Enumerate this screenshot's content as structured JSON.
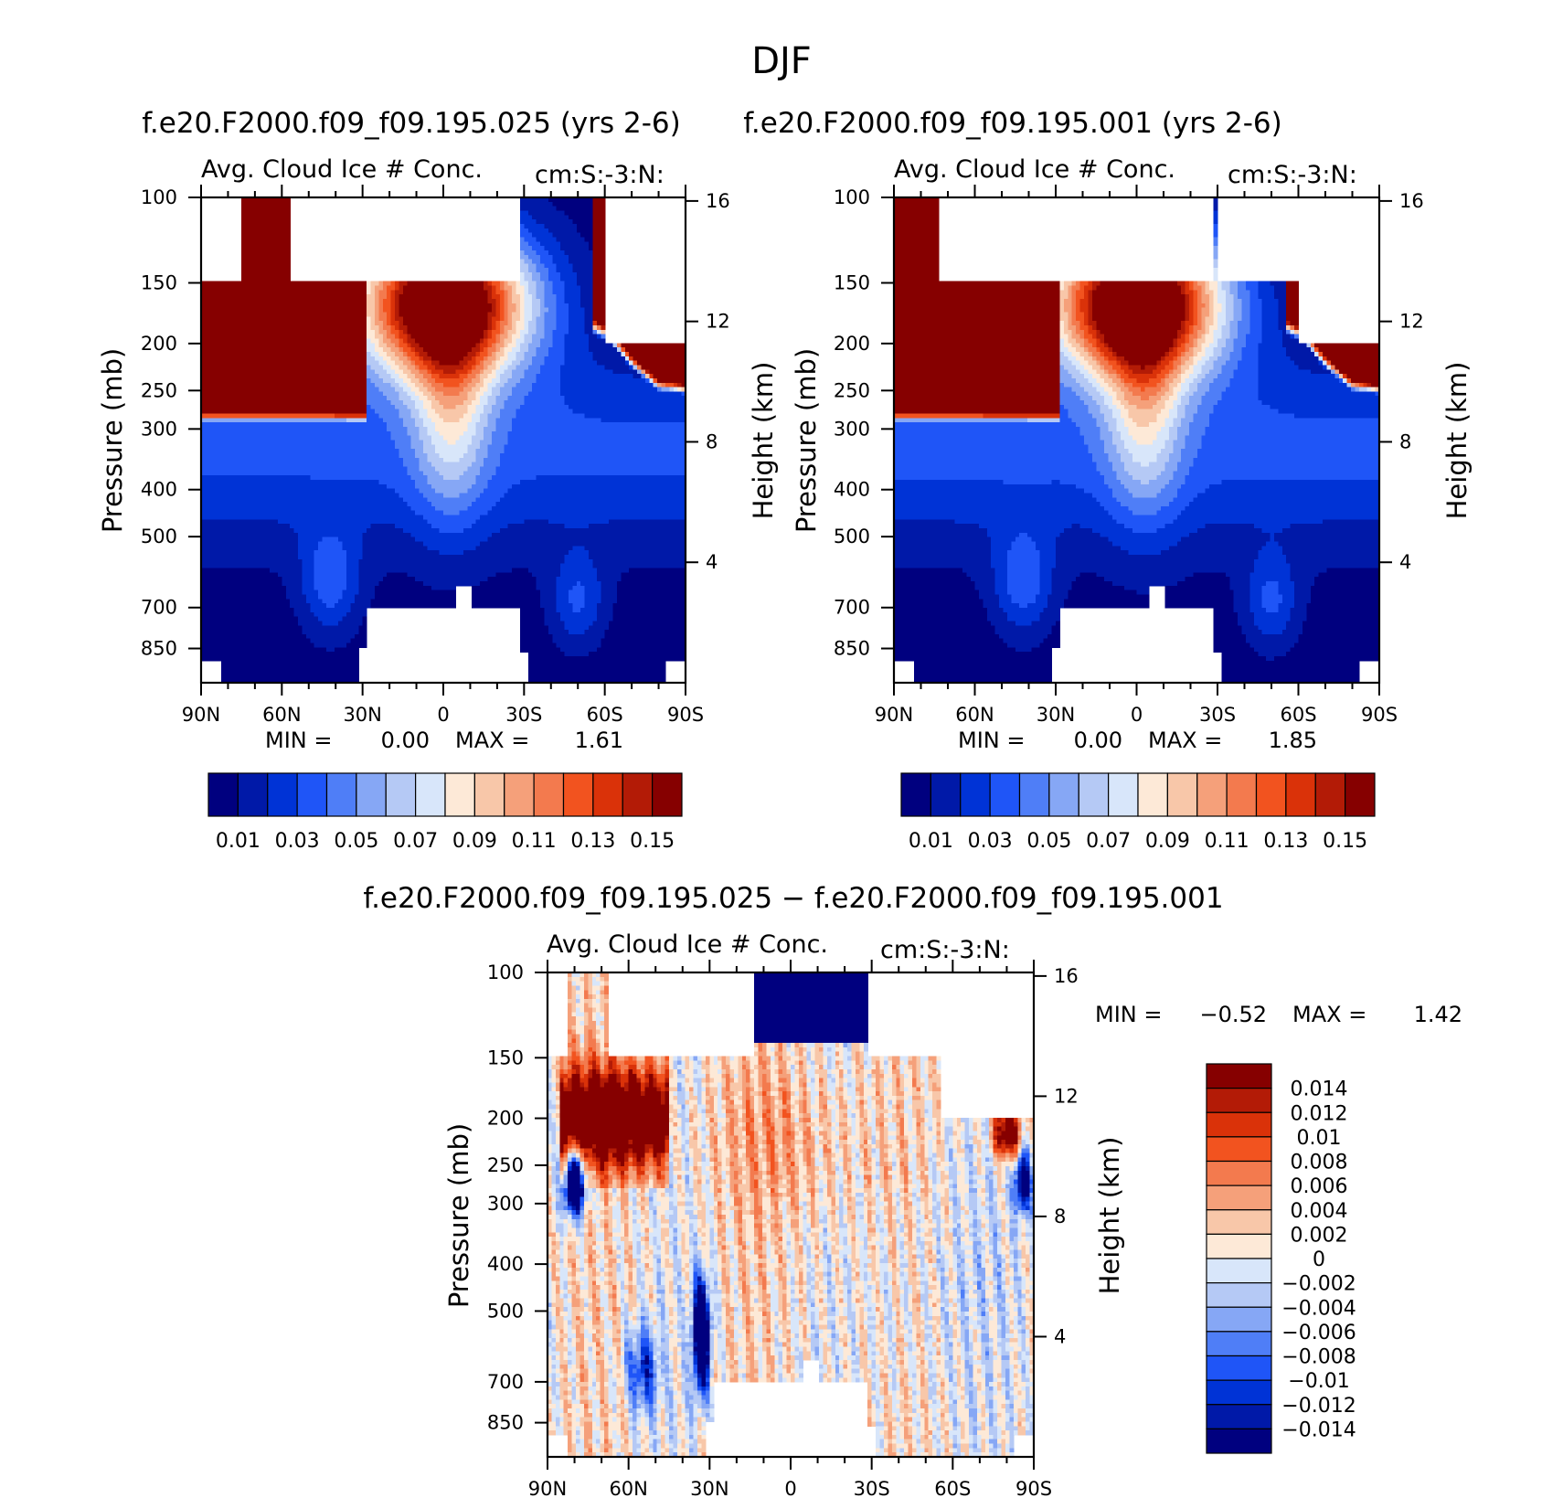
{
  "figure": {
    "title": "DJF"
  },
  "colors": {
    "diverging": [
      "#00007f",
      "#0019a8",
      "#0033d6",
      "#1f55f7",
      "#4f7ef7",
      "#86a7f5",
      "#b5c9f5",
      "#d8e6fa",
      "#fde9d7",
      "#f8c7a9",
      "#f5a07a",
      "#f37a4e",
      "#f2531f",
      "#da3209",
      "#b31b06",
      "#860000"
    ]
  },
  "chart_data": [
    {
      "type": "heatmap",
      "title": "f.e20.F2000.f09_f09.195.025 (yrs 2-6)",
      "subtitle_left": "Avg. Cloud Ice # Conc.",
      "subtitle_right": "cm:S:-3:N:",
      "xlabel": "",
      "ylabel": "Pressure (mb)",
      "y2label": "Height (km)",
      "x_ticks": [
        "90N",
        "60N",
        "30N",
        "0",
        "30S",
        "60S",
        "90S"
      ],
      "y_ticks": [
        100,
        150,
        200,
        250,
        300,
        400,
        500,
        700,
        850
      ],
      "y2_ticks": [
        16,
        12,
        8,
        4
      ],
      "stats": {
        "min_label": "MIN =",
        "min": "0.00",
        "max_label": "MAX =",
        "max": "1.61"
      },
      "colorbar": {
        "orientation": "horizontal",
        "levels": [
          0.01,
          0.02,
          0.03,
          0.04,
          0.05,
          0.06,
          0.07,
          0.08,
          0.09,
          0.1,
          0.11,
          0.12,
          0.13,
          0.14,
          0.15
        ],
        "tick_labels": [
          "0.01",
          "0.03",
          "0.05",
          "0.07",
          "0.09",
          "0.11",
          "0.13",
          "0.15"
        ]
      },
      "field": {
        "high_top_x": [
          -75,
          -57,
          29,
          60
        ],
        "upper_mask_x": [
          -60,
          -20,
          28,
          90
        ]
      }
    },
    {
      "type": "heatmap",
      "title": "f.e20.F2000.f09_f09.195.001 (yrs 2-6)",
      "subtitle_left": "Avg. Cloud Ice # Conc.",
      "subtitle_right": "cm:S:-3:N:",
      "xlabel": "",
      "ylabel": "Pressure (mb)",
      "y2label": "Height (km)",
      "x_ticks": [
        "90N",
        "60N",
        "30N",
        "0",
        "30S",
        "60S",
        "90S"
      ],
      "y_ticks": [
        100,
        150,
        200,
        250,
        300,
        400,
        500,
        700,
        850
      ],
      "y2_ticks": [
        16,
        12,
        8,
        4
      ],
      "stats": {
        "min_label": "MIN =",
        "min": "0.00",
        "max_label": "MAX =",
        "max": "1.85"
      },
      "colorbar": {
        "orientation": "horizontal",
        "levels": [
          0.01,
          0.02,
          0.03,
          0.04,
          0.05,
          0.06,
          0.07,
          0.08,
          0.09,
          0.1,
          0.11,
          0.12,
          0.13,
          0.14,
          0.15
        ],
        "tick_labels": [
          "0.01",
          "0.03",
          "0.05",
          "0.07",
          "0.09",
          "0.11",
          "0.13",
          "0.15"
        ]
      },
      "field": {
        "high_top_x": [
          -90,
          -73,
          28,
          30
        ],
        "upper_mask_x": [
          -73,
          -28,
          30,
          90
        ]
      }
    },
    {
      "type": "heatmap",
      "title": "f.e20.F2000.f09_f09.195.025 − f.e20.F2000.f09_f09.195.001",
      "subtitle_left": "Avg. Cloud Ice # Conc.",
      "subtitle_right": "cm:S:-3:N:",
      "xlabel": "",
      "ylabel": "Pressure (mb)",
      "y2label": "Height (km)",
      "x_ticks": [
        "90N",
        "60N",
        "30N",
        "0",
        "30S",
        "60S",
        "90S"
      ],
      "y_ticks": [
        100,
        150,
        200,
        250,
        300,
        400,
        500,
        700,
        850
      ],
      "y2_ticks": [
        16,
        12,
        8,
        4
      ],
      "stats": {
        "min_label": "MIN =",
        "min": "−0.52",
        "max_label": "MAX =",
        "max": "1.42"
      },
      "colorbar": {
        "orientation": "vertical",
        "levels": [
          -0.014,
          -0.012,
          -0.01,
          -0.008,
          -0.006,
          -0.004,
          -0.002,
          0,
          0.002,
          0.004,
          0.006,
          0.008,
          0.01,
          0.012,
          0.014
        ],
        "tick_labels": [
          "0.014",
          "0.012",
          "0.01",
          "0.008",
          "0.006",
          "0.004",
          "0.002",
          "0",
          "−0.002",
          "−0.004",
          "−0.006",
          "−0.008",
          "−0.01",
          "−0.012",
          "−0.014"
        ]
      }
    }
  ]
}
